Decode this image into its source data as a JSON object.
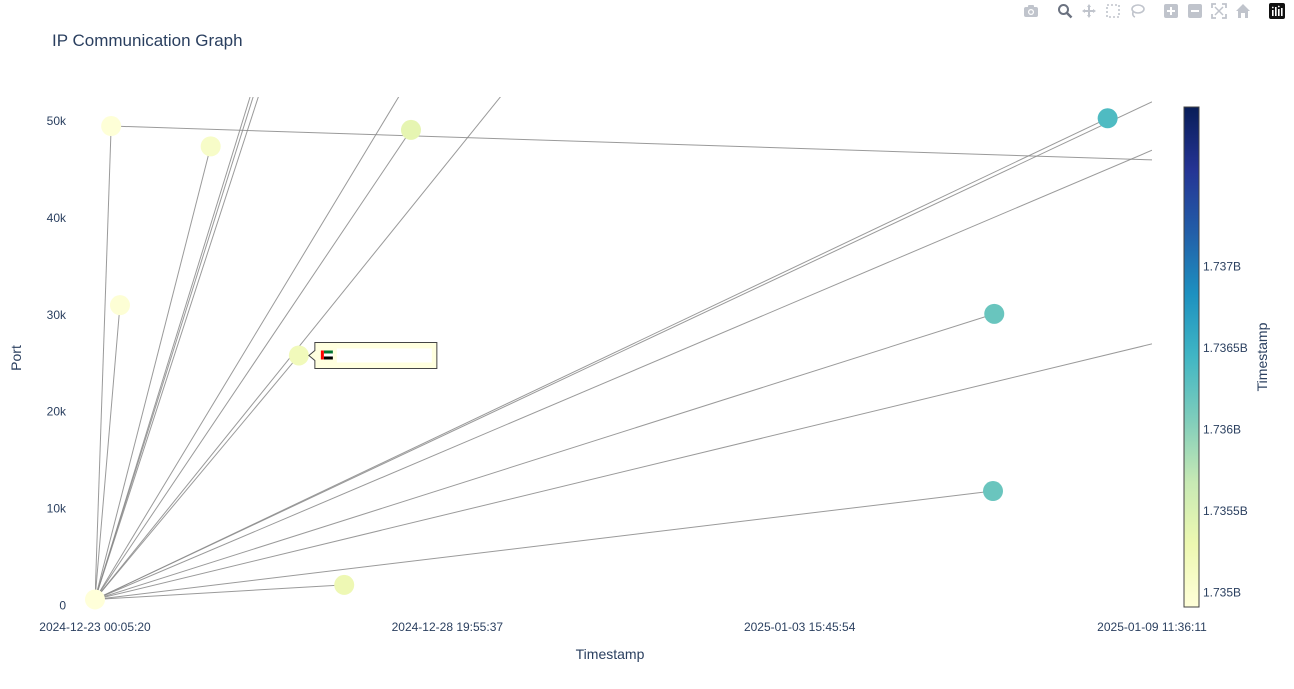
{
  "toolbar": {
    "icons": [
      "camera-icon",
      "zoom-icon",
      "pan-icon",
      "box-select-icon",
      "lasso-select-icon",
      "zoom-in-icon",
      "zoom-out-icon",
      "autoscale-icon",
      "reset-axes-icon",
      "plotly-logo-icon"
    ],
    "icon_color": "#c0c4cc",
    "active_color": "#6b7280"
  },
  "chart_data": {
    "type": "scatter",
    "title": "IP Communication Graph",
    "xlabel": "Timestamp",
    "ylabel": "Port",
    "x_tick_labels": [
      "2024-12-23 00:05:20",
      "2024-12-28 19:55:37",
      "2025-01-03 15:45:54",
      "2025-01-09 11:36:11"
    ],
    "xlim": [
      "2024-12-23 00:05:20",
      "2025-01-09 11:36:11"
    ],
    "y_tick_values": [
      0,
      10000,
      20000,
      30000,
      40000,
      50000
    ],
    "y_tick_labels": [
      "0",
      "10k",
      "20k",
      "30k",
      "40k",
      "50k"
    ],
    "ylim": [
      -800,
      52500
    ],
    "colorscale": [
      "#ffffd9",
      "#edf8b1",
      "#c7e9b4",
      "#7fcdbb",
      "#41b6c4",
      "#1d91c0",
      "#225ea8",
      "#253494",
      "#081d58"
    ],
    "colorbar": {
      "title": "Timestamp",
      "range": [
        1734912300,
        1737980000
      ],
      "tick_values": [
        1735000000,
        1735500000,
        1736000000,
        1736500000,
        1737000000
      ],
      "tick_labels": [
        "1.735B",
        "1.7355B",
        "1.736B",
        "1.7365B",
        "1.737B"
      ]
    },
    "hub": {
      "x": "2024-12-23 00:05:20",
      "y": 600
    },
    "points": [
      {
        "x": "2024-12-23 00:05:20",
        "y": 600
      },
      {
        "x": "2024-12-23 06:30:00",
        "y": 49500
      },
      {
        "x": "2024-12-23 10:00:00",
        "y": 31000
      },
      {
        "x": "2024-12-24 22:00:00",
        "y": 47400
      },
      {
        "x": "2024-12-26 09:00:00",
        "y": 25800
      },
      {
        "x": "2024-12-27 03:00:00",
        "y": 2100
      },
      {
        "x": "2024-12-28 05:30:00",
        "y": 49100
      },
      {
        "x": "2025-01-06 21:00:00",
        "y": 30100
      },
      {
        "x": "2025-01-06 20:30:00",
        "y": 11800
      },
      {
        "x": "2025-01-08 18:00:00",
        "y": 50300
      }
    ],
    "edges_to_points": [
      1,
      2,
      3,
      4,
      5,
      6,
      7,
      8,
      9
    ],
    "edges_clipped": [
      {
        "x": "2024-12-26 08:30:00",
        "y": 65000
      },
      {
        "x": "2024-12-26 08:00:00",
        "y": 68000
      },
      {
        "x": "2024-12-26 12:00:00",
        "y": 70000
      },
      {
        "x": "2024-12-28 18:00:00",
        "y": 60000
      },
      {
        "x": "2024-12-30 10:00:00",
        "y": 58000
      },
      {
        "x": "2025-01-09 11:36:11",
        "y": 47000
      },
      {
        "x": "2025-01-09 11:36:11",
        "y": 52000
      },
      {
        "x": "2025-01-09 11:36:11",
        "y": 27000
      }
    ],
    "extra_edges": [
      {
        "from": {
          "x": "2024-12-23 06:30:00",
          "y": 49500
        },
        "to": {
          "x": "2025-01-09 11:36:11",
          "y": 46000
        }
      }
    ],
    "line_color": "#888888",
    "tooltip": {
      "at_point": 4,
      "flag": "ae"
    }
  }
}
